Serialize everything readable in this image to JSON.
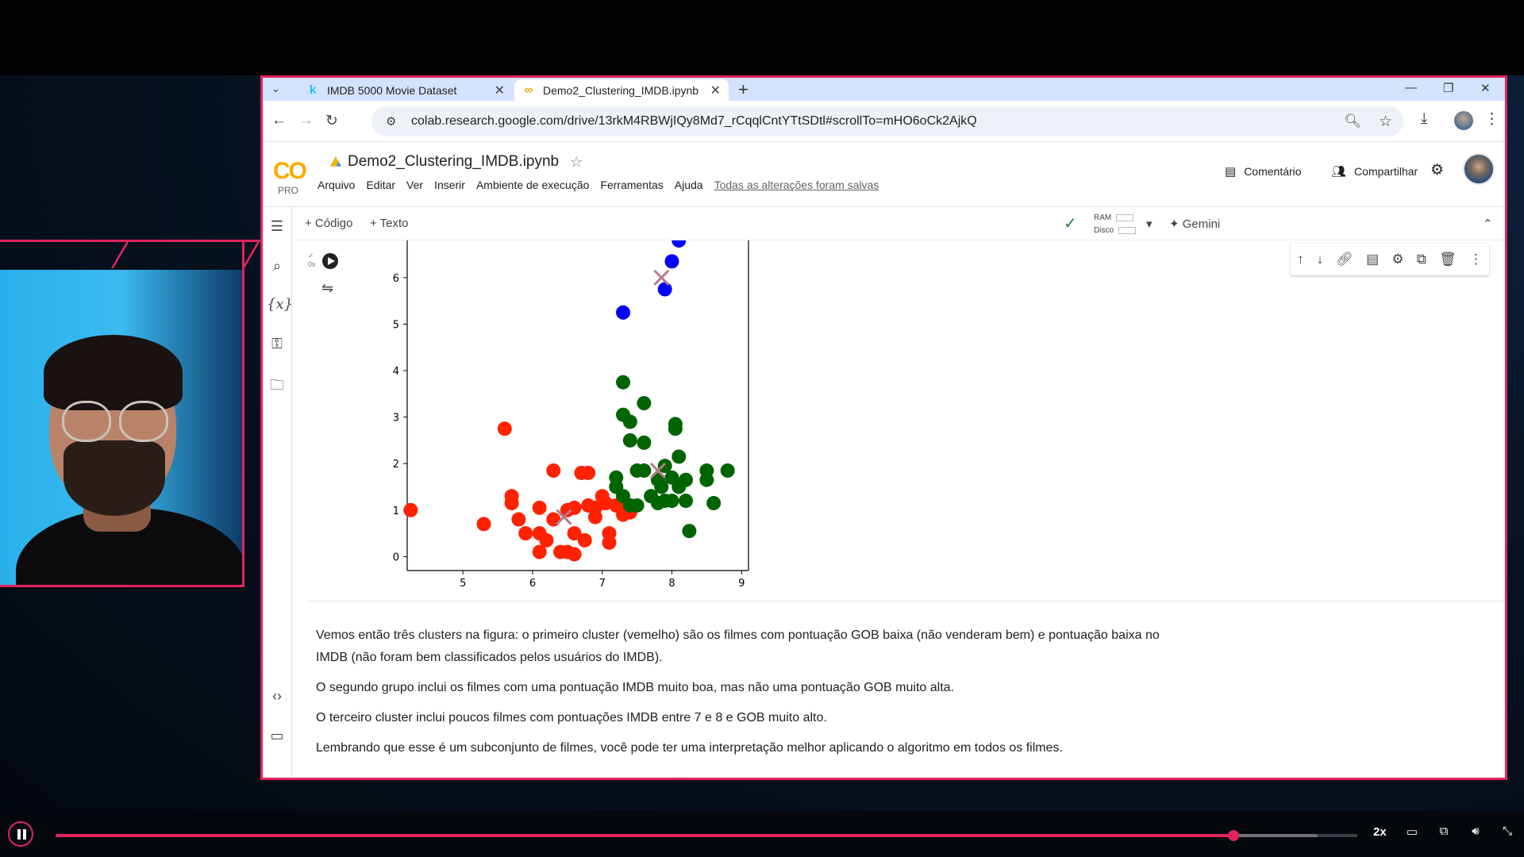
{
  "browser": {
    "tabs": [
      {
        "label": "IMDB 5000 Movie Dataset",
        "icon": "kaggle-icon"
      },
      {
        "label": "Demo2_Clustering_IMDB.ipynb",
        "icon": "colab-icon"
      }
    ],
    "url": "colab.research.google.com/drive/13rkM4RBWjIQy8Md7_rCqqlCntYTtSDtl#scrollTo=mHO6oCk2AjkQ"
  },
  "colab": {
    "logo": "CO",
    "plan": "PRO",
    "title": "Demo2_Clustering_IMDB.ipynb",
    "menus": [
      "Arquivo",
      "Editar",
      "Ver",
      "Inserir",
      "Ambiente de execução",
      "Ferramentas",
      "Ajuda"
    ],
    "saved_status": "Todas as alterações foram salvas",
    "comment_label": "Comentário",
    "share_label": "Compartilhar",
    "add_code": "+ Código",
    "add_text": "+ Texto",
    "ram_label": "RAM",
    "disk_label": "Disco",
    "gemini_label": "Gemini",
    "exec_time": "0s"
  },
  "chart_data": {
    "type": "scatter",
    "xlim": [
      4.2,
      9.1
    ],
    "ylim": [
      -0.3,
      6.8
    ],
    "xticks": [
      5,
      6,
      7,
      8,
      9
    ],
    "yticks": [
      0,
      1,
      2,
      3,
      4,
      5,
      6
    ],
    "grid": false,
    "series": [
      {
        "color": "#ff2200",
        "points": [
          [
            4.25,
            1.0
          ],
          [
            5.3,
            0.7
          ],
          [
            5.6,
            2.75
          ],
          [
            5.7,
            1.3
          ],
          [
            5.7,
            1.15
          ],
          [
            5.8,
            0.8
          ],
          [
            5.9,
            0.5
          ],
          [
            6.1,
            1.05
          ],
          [
            6.1,
            0.5
          ],
          [
            6.1,
            0.1
          ],
          [
            6.2,
            0.35
          ],
          [
            6.3,
            1.85
          ],
          [
            6.3,
            0.8
          ],
          [
            6.4,
            0.1
          ],
          [
            6.5,
            0.1
          ],
          [
            6.5,
            1.0
          ],
          [
            6.6,
            0.5
          ],
          [
            6.6,
            1.05
          ],
          [
            6.6,
            0.05
          ],
          [
            6.7,
            1.8
          ],
          [
            6.8,
            1.8
          ],
          [
            6.8,
            1.1
          ],
          [
            6.9,
            0.85
          ],
          [
            6.9,
            1.05
          ],
          [
            7.0,
            1.3
          ],
          [
            7.1,
            0.5
          ],
          [
            7.1,
            0.3
          ],
          [
            7.2,
            1.1
          ],
          [
            7.3,
            0.9
          ],
          [
            7.4,
            0.95
          ],
          [
            7.05,
            1.15
          ],
          [
            6.75,
            0.35
          ]
        ]
      },
      {
        "color": "#006400",
        "points": [
          [
            7.2,
            1.7
          ],
          [
            7.2,
            1.5
          ],
          [
            7.3,
            3.75
          ],
          [
            7.3,
            3.05
          ],
          [
            7.3,
            1.3
          ],
          [
            7.4,
            2.9
          ],
          [
            7.4,
            2.5
          ],
          [
            7.4,
            1.1
          ],
          [
            7.5,
            1.85
          ],
          [
            7.5,
            1.1
          ],
          [
            7.6,
            3.3
          ],
          [
            7.6,
            2.45
          ],
          [
            7.6,
            1.85
          ],
          [
            7.7,
            1.3
          ],
          [
            7.8,
            1.65
          ],
          [
            7.8,
            1.15
          ],
          [
            7.85,
            1.5
          ],
          [
            7.9,
            1.95
          ],
          [
            7.9,
            1.2
          ],
          [
            8.0,
            1.7
          ],
          [
            8.0,
            1.2
          ],
          [
            8.05,
            2.85
          ],
          [
            8.05,
            2.75
          ],
          [
            8.1,
            1.5
          ],
          [
            8.1,
            2.15
          ],
          [
            8.2,
            1.65
          ],
          [
            8.2,
            1.2
          ],
          [
            8.25,
            0.55
          ],
          [
            8.5,
            1.85
          ],
          [
            8.5,
            1.65
          ],
          [
            8.6,
            1.15
          ],
          [
            8.8,
            1.85
          ]
        ]
      },
      {
        "color": "#0000ff",
        "points": [
          [
            7.3,
            5.25
          ],
          [
            7.9,
            5.75
          ],
          [
            8.0,
            6.35
          ],
          [
            8.1,
            6.8
          ]
        ]
      }
    ],
    "centroids": [
      {
        "x": 6.45,
        "y": 0.85,
        "color": "#b37a8a"
      },
      {
        "x": 7.8,
        "y": 1.85,
        "color": "#b37a8a"
      },
      {
        "x": 7.85,
        "y": 6.0,
        "color": "#b37a8a"
      }
    ]
  },
  "markdown": {
    "paragraphs": [
      "Vemos então três clusters na figura: o primeiro cluster (vemelho) são os filmes com pontuação GOB baixa (não venderam bem) e pontuação baixa no IMDB (não foram bem classificados pelos usuários do IMDB).",
      "O segundo grupo inclui os filmes com uma pontuação IMDB muito boa, mas não uma pontuação GOB muito alta.",
      "O terceiro cluster inclui poucos filmes com pontuações IMDB entre 7 e 8 e GOB muito alto.",
      "Lembrando que esse é um subconjunto de filmes, você pode ter uma interpretação melhor aplicando o algoritmo em todos os filmes."
    ]
  },
  "player": {
    "progress": 0.905,
    "speed": "2x"
  }
}
